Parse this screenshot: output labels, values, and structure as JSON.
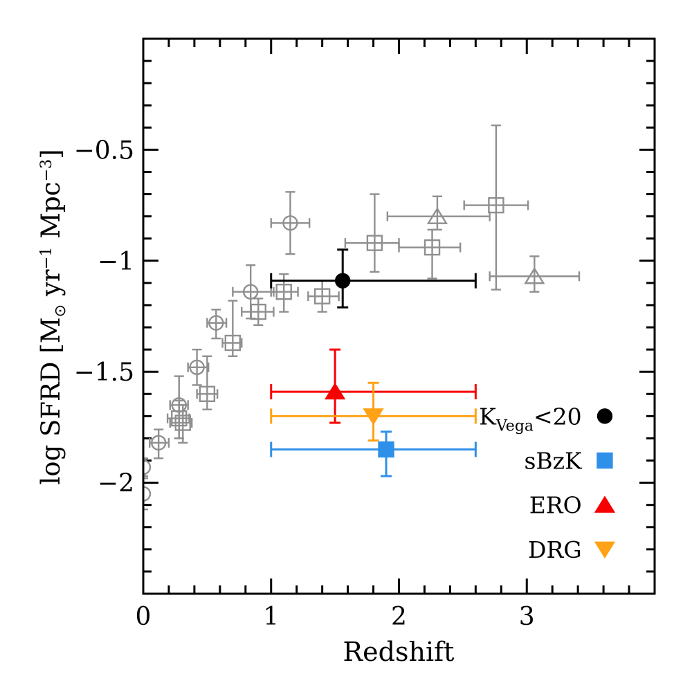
{
  "figure": {
    "background": "#ffffff",
    "frame_color": "#000000"
  },
  "axes": {
    "xlabel": "Redshift",
    "ylabel_parts": {
      "p1": "log SFRD [M",
      "sun": "⊙",
      "p2": " yr",
      "sup1": "−1",
      "p3": " Mpc",
      "sup2": "−3",
      "p4": "]"
    }
  },
  "chart_data": {
    "type": "scatter",
    "title": "",
    "xlabel": "Redshift",
    "ylabel": "log SFRD [M⊙ yr⁻¹ Mpc⁻³]",
    "xlim": [
      0,
      4.0
    ],
    "ylim": [
      -2.5,
      0
    ],
    "grid": false,
    "x_major_ticks": [
      0,
      1,
      2,
      3
    ],
    "x_minor_step": 0.2,
    "y_major_ticks": [
      -0.5,
      -1.0,
      -1.5,
      -2.0
    ],
    "y_minor_step": 0.1,
    "x_ticklabels": [
      {
        "value": 0,
        "label": "0"
      },
      {
        "value": 1,
        "label": "1"
      },
      {
        "value": 2,
        "label": "2"
      },
      {
        "value": 3,
        "label": "3"
      }
    ],
    "y_ticklabels": [
      {
        "value": -0.5,
        "label": "−0.5"
      },
      {
        "value": -1.0,
        "label": "−1"
      },
      {
        "value": -1.5,
        "label": "−1.5"
      },
      {
        "value": -2.0,
        "label": "−2"
      }
    ],
    "point_format": [
      "z",
      "log_sfrd",
      "z_lo",
      "z_hi",
      "sfrd_lo",
      "sfrd_hi"
    ],
    "series": [
      {
        "name": "literature-circles",
        "marker": "circle",
        "filled": false,
        "color": "#8f8f8f",
        "points": [
          [
            0.0,
            -1.93,
            null,
            null,
            -1.97,
            -1.89
          ],
          [
            0.0,
            -2.05,
            null,
            null,
            -2.12,
            -1.98
          ],
          [
            0.12,
            -1.82,
            0.05,
            0.2,
            -1.89,
            -1.76
          ],
          [
            0.28,
            -1.65,
            0.21,
            0.35,
            -1.8,
            -1.52
          ],
          [
            0.42,
            -1.48,
            0.35,
            0.51,
            -1.56,
            -1.4
          ],
          [
            0.57,
            -1.28,
            0.5,
            0.65,
            -1.35,
            -1.22
          ],
          [
            0.84,
            -1.14,
            0.7,
            1.02,
            -1.26,
            -1.02
          ],
          [
            1.15,
            -0.83,
            1.0,
            1.3,
            -0.97,
            -0.69
          ]
        ]
      },
      {
        "name": "literature-squares",
        "marker": "square",
        "filled": false,
        "color": "#8f8f8f",
        "points": [
          [
            0.28,
            -1.71,
            0.19,
            0.36,
            -1.8,
            -1.63
          ],
          [
            0.31,
            -1.73,
            0.21,
            0.38,
            -1.82,
            -1.65
          ],
          [
            0.5,
            -1.6,
            0.42,
            0.58,
            -1.67,
            -1.43
          ],
          [
            0.7,
            -1.37,
            0.62,
            0.77,
            -1.43,
            -1.18
          ],
          [
            0.9,
            -1.23,
            0.77,
            1.02,
            -1.29,
            -1.17
          ],
          [
            1.1,
            -1.14,
            1.0,
            1.21,
            -1.23,
            -1.06
          ],
          [
            1.4,
            -1.16,
            1.29,
            1.53,
            -1.23,
            -1.09
          ],
          [
            1.81,
            -0.92,
            1.58,
            2.0,
            -1.05,
            -0.7
          ],
          [
            2.26,
            -0.94,
            2.0,
            2.48,
            -1.08,
            -0.86
          ],
          [
            2.76,
            -0.75,
            2.51,
            3.01,
            -1.13,
            -0.39
          ]
        ]
      },
      {
        "name": "literature-triangles",
        "marker": "triangle-up",
        "filled": false,
        "color": "#8f8f8f",
        "points": [
          [
            2.3,
            -0.8,
            1.91,
            2.71,
            -0.86,
            -0.71
          ],
          [
            3.06,
            -1.07,
            2.71,
            3.41,
            -1.14,
            -0.98
          ]
        ]
      },
      {
        "name": "K20",
        "marker": "circle",
        "filled": true,
        "color": "#000000",
        "points": [
          [
            1.56,
            -1.09,
            1.0,
            2.6,
            -1.21,
            -0.95
          ]
        ]
      },
      {
        "name": "sBzK",
        "marker": "square",
        "filled": true,
        "color": "#2e90e8",
        "points": [
          [
            1.9,
            -1.85,
            1.0,
            2.6,
            -1.97,
            -1.77
          ]
        ]
      },
      {
        "name": "ERO",
        "marker": "triangle-up",
        "filled": true,
        "color": "#f90000",
        "points": [
          [
            1.5,
            -1.59,
            1.0,
            2.6,
            -1.73,
            -1.4
          ]
        ]
      },
      {
        "name": "DRG",
        "marker": "triangle-down",
        "filled": true,
        "color": "#ffa216",
        "points": [
          [
            1.8,
            -1.7,
            1.0,
            2.6,
            -1.81,
            -1.55
          ]
        ]
      }
    ],
    "legend": {
      "position": "inside-right",
      "marker_z": 3.61,
      "text_right_z": 3.43,
      "entries": [
        {
          "label": "K_Vega<20",
          "label_parts": [
            {
              "t": "K",
              "style": "normal"
            },
            {
              "t": "Vega",
              "style": "sub"
            },
            {
              "t": "<20",
              "style": "normal"
            }
          ],
          "series": "K20",
          "marker": "circle",
          "color": "#000000",
          "v": -1.7
        },
        {
          "label": "sBzK",
          "label_parts": [
            {
              "t": "sBzK",
              "style": "normal"
            }
          ],
          "series": "sBzK",
          "marker": "square",
          "color": "#2e90e8",
          "v": -1.9
        },
        {
          "label": "ERO",
          "label_parts": [
            {
              "t": "ERO",
              "style": "normal"
            }
          ],
          "series": "ERO",
          "marker": "triangle-up",
          "color": "#f90000",
          "v": -2.1
        },
        {
          "label": "DRG",
          "label_parts": [
            {
              "t": "DRG",
              "style": "normal"
            }
          ],
          "series": "DRG",
          "marker": "triangle-down",
          "color": "#ffa216",
          "v": -2.3
        }
      ]
    }
  }
}
